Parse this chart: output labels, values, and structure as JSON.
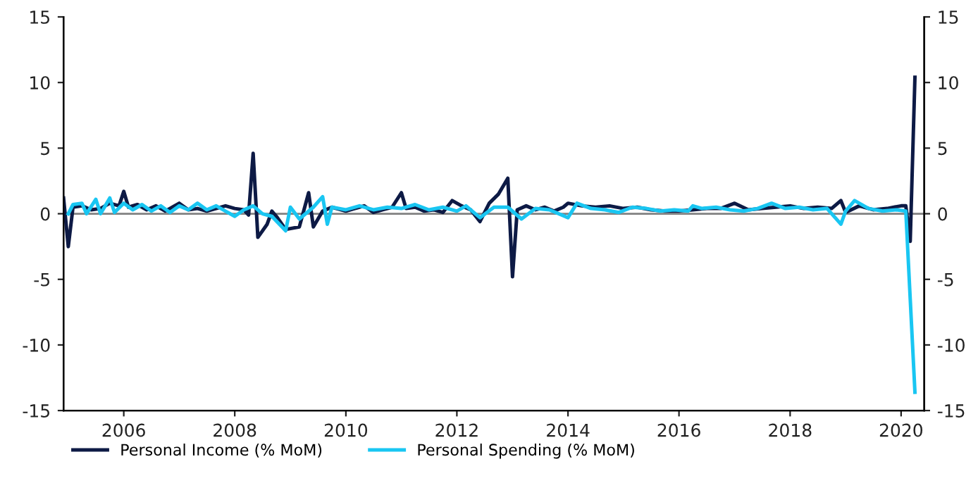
{
  "chart_data": {
    "type": "line",
    "xlim": [
      "2004-12",
      "2020-06"
    ],
    "xticks": [
      {
        "value": "2006-01",
        "label": "2006"
      },
      {
        "value": "2008-01",
        "label": "2008"
      },
      {
        "value": "2010-01",
        "label": "2010"
      },
      {
        "value": "2012-01",
        "label": "2012"
      },
      {
        "value": "2014-01",
        "label": "2014"
      },
      {
        "value": "2016-01",
        "label": "2016"
      },
      {
        "value": "2018-01",
        "label": "2018"
      },
      {
        "value": "2020-01",
        "label": "2020"
      }
    ],
    "ylim": [
      -15,
      15
    ],
    "yticks": [
      -15,
      -10,
      -5,
      0,
      5,
      10,
      15
    ],
    "y2lim": [
      -15,
      15
    ],
    "y2ticks": [
      -15,
      -10,
      -5,
      0,
      5,
      10,
      15
    ],
    "grid": false,
    "legend": "bottom",
    "marker": "none",
    "line_style": "solid",
    "ref_lines": [
      {
        "axis": "y",
        "value": 0,
        "color": "#808080"
      }
    ],
    "series": [
      {
        "name": "Personal Income (% MoM)",
        "color": "#0d1a45",
        "x": [
          "2004-12",
          "2005-01",
          "2005-02",
          "2005-04",
          "2005-06",
          "2005-08",
          "2005-10",
          "2005-12",
          "2006-01",
          "2006-02",
          "2006-04",
          "2006-06",
          "2006-08",
          "2006-10",
          "2006-12",
          "2007-01",
          "2007-03",
          "2007-05",
          "2007-07",
          "2007-09",
          "2007-11",
          "2008-01",
          "2008-03",
          "2008-04",
          "2008-05",
          "2008-06",
          "2008-08",
          "2008-09",
          "2008-10",
          "2008-12",
          "2009-03",
          "2009-05",
          "2009-06",
          "2009-08",
          "2009-10",
          "2010-01",
          "2010-03",
          "2010-05",
          "2010-07",
          "2010-09",
          "2010-11",
          "2011-01",
          "2011-02",
          "2011-04",
          "2011-06",
          "2011-08",
          "2011-10",
          "2011-12",
          "2012-02",
          "2012-04",
          "2012-06",
          "2012-08",
          "2012-10",
          "2012-12",
          "2013-01",
          "2013-02",
          "2013-04",
          "2013-06",
          "2013-08",
          "2013-10",
          "2013-12",
          "2014-01",
          "2014-04",
          "2014-07",
          "2014-10",
          "2015-01",
          "2015-04",
          "2015-07",
          "2015-10",
          "2016-01",
          "2016-04",
          "2016-07",
          "2016-10",
          "2017-01",
          "2017-04",
          "2017-07",
          "2017-10",
          "2018-01",
          "2018-04",
          "2018-07",
          "2018-10",
          "2018-12",
          "2019-01",
          "2019-04",
          "2019-07",
          "2019-10",
          "2020-01",
          "2020-02",
          "2020-03",
          "2020-04"
        ],
        "values": [
          1.2,
          -2.5,
          0.5,
          0.6,
          0.3,
          0.4,
          0.8,
          0.6,
          1.7,
          0.5,
          0.7,
          0.3,
          0.6,
          0.2,
          0.6,
          0.8,
          0.3,
          0.4,
          0.2,
          0.4,
          0.6,
          0.4,
          0.3,
          -0.1,
          4.6,
          -1.8,
          -0.8,
          0.2,
          -0.2,
          -1.2,
          -1.0,
          1.6,
          -1.0,
          0.2,
          0.5,
          0.2,
          0.4,
          0.6,
          0.1,
          0.3,
          0.5,
          1.6,
          0.4,
          0.5,
          0.2,
          0.3,
          0.1,
          1.0,
          0.6,
          0.3,
          -0.6,
          0.8,
          1.5,
          2.7,
          -4.8,
          0.3,
          0.6,
          0.3,
          0.5,
          0.2,
          0.5,
          0.8,
          0.6,
          0.5,
          0.6,
          0.4,
          0.5,
          0.3,
          0.2,
          0.2,
          0.3,
          0.4,
          0.4,
          0.8,
          0.3,
          0.4,
          0.5,
          0.6,
          0.4,
          0.5,
          0.4,
          1.0,
          0.1,
          0.6,
          0.3,
          0.4,
          0.6,
          0.6,
          -2.1,
          10.4
        ]
      },
      {
        "name": "Personal Spending (% MoM)",
        "color": "#19c6f2",
        "x": [
          "2005-01",
          "2005-02",
          "2005-04",
          "2005-05",
          "2005-07",
          "2005-08",
          "2005-09",
          "2005-10",
          "2005-11",
          "2006-01",
          "2006-03",
          "2006-05",
          "2006-07",
          "2006-09",
          "2006-11",
          "2007-01",
          "2007-03",
          "2007-05",
          "2007-07",
          "2007-09",
          "2007-11",
          "2008-01",
          "2008-03",
          "2008-05",
          "2008-07",
          "2008-09",
          "2008-12",
          "2009-01",
          "2009-03",
          "2009-06",
          "2009-08",
          "2009-09",
          "2009-10",
          "2010-01",
          "2010-04",
          "2010-07",
          "2010-10",
          "2011-01",
          "2011-04",
          "2011-07",
          "2011-10",
          "2012-01",
          "2012-03",
          "2012-06",
          "2012-09",
          "2012-12",
          "2013-03",
          "2013-06",
          "2013-09",
          "2014-01",
          "2014-03",
          "2014-06",
          "2014-09",
          "2014-12",
          "2015-03",
          "2015-06",
          "2015-09",
          "2015-12",
          "2016-03",
          "2016-04",
          "2016-06",
          "2016-09",
          "2016-12",
          "2017-03",
          "2017-06",
          "2017-09",
          "2017-12",
          "2018-03",
          "2018-06",
          "2018-09",
          "2018-12",
          "2019-01",
          "2019-03",
          "2019-06",
          "2019-09",
          "2019-12",
          "2020-02",
          "2020-03",
          "2020-04"
        ],
        "values": [
          0.0,
          0.7,
          0.8,
          0.0,
          1.1,
          0.0,
          0.6,
          1.2,
          0.1,
          0.8,
          0.3,
          0.7,
          0.2,
          0.6,
          0.1,
          0.6,
          0.3,
          0.8,
          0.3,
          0.6,
          0.2,
          -0.2,
          0.3,
          0.6,
          0.0,
          -0.2,
          -1.3,
          0.5,
          -0.4,
          0.5,
          1.3,
          -0.8,
          0.5,
          0.3,
          0.6,
          0.3,
          0.5,
          0.4,
          0.7,
          0.3,
          0.5,
          0.2,
          0.6,
          -0.3,
          0.5,
          0.5,
          -0.4,
          0.4,
          0.3,
          -0.3,
          0.8,
          0.4,
          0.3,
          0.1,
          0.5,
          0.4,
          0.2,
          0.3,
          0.2,
          0.6,
          0.4,
          0.5,
          0.3,
          0.2,
          0.4,
          0.8,
          0.4,
          0.5,
          0.3,
          0.4,
          -0.8,
          0.2,
          1.0,
          0.4,
          0.2,
          0.3,
          0.2,
          -6.5,
          -13.6
        ]
      }
    ]
  }
}
